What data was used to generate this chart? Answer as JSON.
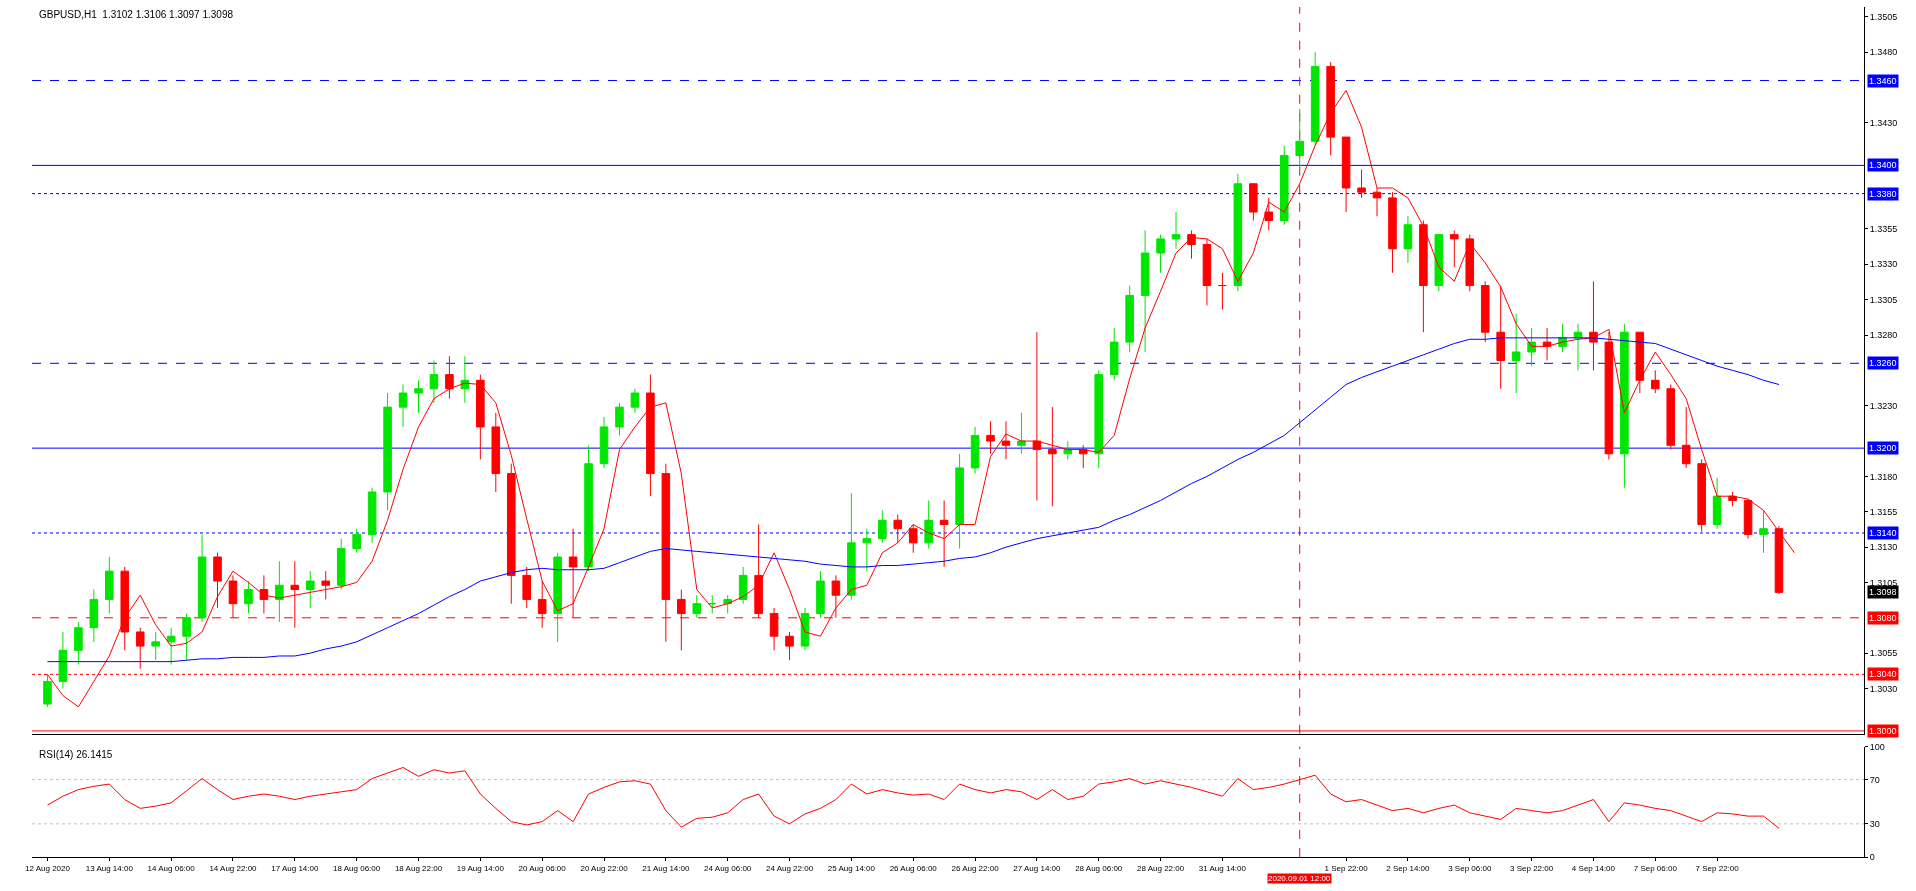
{
  "chart_data": [
    {
      "type": "candlestick",
      "title": "GBPUSD,H1  1.3102 1.3106 1.3097 1.3098",
      "categories": [
        "12 Aug 2020",
        null,
        null,
        null,
        "13 Aug 14:00",
        null,
        null,
        null,
        "14 Aug 06:00",
        null,
        null,
        null,
        "14 Aug 22:00",
        null,
        null,
        null,
        "17 Aug 14:00",
        null,
        null,
        null,
        "18 Aug 06:00",
        null,
        null,
        null,
        "18 Aug 22:00",
        null,
        null,
        null,
        "19 Aug 14:00",
        null,
        null,
        null,
        "20 Aug 06:00",
        null,
        null,
        null,
        "20 Aug 22:00",
        null,
        null,
        null,
        "21 Aug 14:00",
        null,
        null,
        null,
        "24 Aug 06:00",
        null,
        null,
        null,
        "24 Aug 22:00",
        null,
        null,
        null,
        "25 Aug 14:00",
        null,
        null,
        null,
        "26 Aug 06:00",
        null,
        null,
        null,
        "26 Aug 22:00",
        null,
        null,
        null,
        "27 Aug 14:00",
        null,
        null,
        null,
        "28 Aug 06:00",
        null,
        null,
        null,
        "28 Aug 22:00",
        null,
        null,
        null,
        "31 Aug 14:00",
        null,
        null,
        null,
        null,
        "2020.09.01 12:00",
        null,
        null,
        "1 Sep 22:00",
        null,
        null,
        null,
        "2 Sep 14:00",
        null,
        null,
        null,
        "3 Sep 06:00",
        null,
        null,
        null,
        "3 Sep 22:00",
        null,
        null,
        null,
        "4 Sep 14:00",
        null,
        null,
        null,
        "7 Sep 06:00",
        null,
        null,
        null,
        "7 Sep 22:00",
        null,
        null,
        null,
        null,
        null,
        null,
        null,
        null,
        null
      ],
      "ohlc": [
        [
          1.3019,
          1.304,
          1.3017,
          1.3035
        ],
        [
          1.3035,
          1.307,
          1.303,
          1.3057
        ],
        [
          1.3057,
          1.3077,
          1.3047,
          1.3073
        ],
        [
          1.3073,
          1.31,
          1.3063,
          1.3093
        ],
        [
          1.3093,
          1.3123,
          1.3083,
          1.3113
        ],
        [
          1.3113,
          1.3116,
          1.3057,
          1.307
        ],
        [
          1.307,
          1.3073,
          1.3044,
          1.306
        ],
        [
          1.306,
          1.307,
          1.305,
          1.3063
        ],
        [
          1.3063,
          1.3073,
          1.3047,
          1.3067
        ],
        [
          1.3067,
          1.3083,
          1.305,
          1.308
        ],
        [
          1.308,
          1.3139,
          1.3077,
          1.3123
        ],
        [
          1.3123,
          1.3126,
          1.3087,
          1.3106
        ],
        [
          1.3106,
          1.311,
          1.308,
          1.309
        ],
        [
          1.309,
          1.3106,
          1.3083,
          1.31
        ],
        [
          1.31,
          1.311,
          1.3083,
          1.3093
        ],
        [
          1.3093,
          1.312,
          1.3077,
          1.3103
        ],
        [
          1.3103,
          1.312,
          1.3073,
          1.31
        ],
        [
          1.31,
          1.3113,
          1.3087,
          1.3106
        ],
        [
          1.3106,
          1.3113,
          1.3093,
          1.3103
        ],
        [
          1.3103,
          1.3136,
          1.31,
          1.3129
        ],
        [
          1.3129,
          1.3143,
          1.3126,
          1.3139
        ],
        [
          1.3139,
          1.3172,
          1.3133,
          1.3169
        ],
        [
          1.3169,
          1.3239,
          1.3156,
          1.3229
        ],
        [
          1.3229,
          1.3245,
          1.3215,
          1.3239
        ],
        [
          1.3239,
          1.3248,
          1.3225,
          1.3242
        ],
        [
          1.3242,
          1.3262,
          1.3232,
          1.3252
        ],
        [
          1.3252,
          1.3265,
          1.3235,
          1.3242
        ],
        [
          1.3242,
          1.3265,
          1.3232,
          1.3248
        ],
        [
          1.3248,
          1.3252,
          1.3192,
          1.3215
        ],
        [
          1.3215,
          1.3225,
          1.3169,
          1.3182
        ],
        [
          1.3182,
          1.3189,
          1.309,
          1.311
        ],
        [
          1.311,
          1.3116,
          1.3087,
          1.3093
        ],
        [
          1.3093,
          1.3106,
          1.3073,
          1.3083
        ],
        [
          1.3083,
          1.3126,
          1.3063,
          1.3123
        ],
        [
          1.3123,
          1.3143,
          1.308,
          1.3116
        ],
        [
          1.3116,
          1.3202,
          1.3113,
          1.3189
        ],
        [
          1.3189,
          1.3222,
          1.3186,
          1.3215
        ],
        [
          1.3215,
          1.3232,
          1.3209,
          1.3229
        ],
        [
          1.3229,
          1.3242,
          1.3225,
          1.3239
        ],
        [
          1.3239,
          1.3252,
          1.3166,
          1.3182
        ],
        [
          1.3182,
          1.3189,
          1.3063,
          1.3093
        ],
        [
          1.3093,
          1.31,
          1.3057,
          1.3083
        ],
        [
          1.3083,
          1.3096,
          1.308,
          1.309
        ],
        [
          1.309,
          1.3096,
          1.3083,
          1.309
        ],
        [
          1.309,
          1.3096,
          1.3083,
          1.3093
        ],
        [
          1.3093,
          1.3116,
          1.309,
          1.311
        ],
        [
          1.311,
          1.3146,
          1.308,
          1.3083
        ],
        [
          1.3083,
          1.3087,
          1.3057,
          1.3067
        ],
        [
          1.3067,
          1.307,
          1.305,
          1.306
        ],
        [
          1.306,
          1.3087,
          1.3057,
          1.3083
        ],
        [
          1.3083,
          1.3113,
          1.308,
          1.3106
        ],
        [
          1.3106,
          1.311,
          1.308,
          1.3096
        ],
        [
          1.3096,
          1.3168,
          1.3093,
          1.3133
        ],
        [
          1.3133,
          1.3143,
          1.3113,
          1.3136
        ],
        [
          1.3136,
          1.3156,
          1.3133,
          1.3149
        ],
        [
          1.3149,
          1.3153,
          1.3133,
          1.3143
        ],
        [
          1.3143,
          1.3146,
          1.3126,
          1.3133
        ],
        [
          1.3133,
          1.3163,
          1.3129,
          1.3149
        ],
        [
          1.3149,
          1.3163,
          1.3116,
          1.3146
        ],
        [
          1.3146,
          1.3196,
          1.3129,
          1.3186
        ],
        [
          1.3186,
          1.3215,
          1.3182,
          1.3209
        ],
        [
          1.3209,
          1.3219,
          1.3196,
          1.3205
        ],
        [
          1.3205,
          1.3219,
          1.3192,
          1.3202
        ],
        [
          1.3202,
          1.3225,
          1.3196,
          1.3205
        ],
        [
          1.3205,
          1.3282,
          1.3163,
          1.3199
        ],
        [
          1.3199,
          1.3229,
          1.3159,
          1.3196
        ],
        [
          1.3196,
          1.3205,
          1.3192,
          1.3199
        ],
        [
          1.3199,
          1.3202,
          1.3186,
          1.3196
        ],
        [
          1.3196,
          1.3255,
          1.3186,
          1.3252
        ],
        [
          1.3252,
          1.3285,
          1.3248,
          1.3275
        ],
        [
          1.3275,
          1.3315,
          1.3268,
          1.3308
        ],
        [
          1.3308,
          1.3354,
          1.3268,
          1.3338
        ],
        [
          1.3338,
          1.3351,
          1.3324,
          1.3348
        ],
        [
          1.3348,
          1.3367,
          1.3341,
          1.3351
        ],
        [
          1.3351,
          1.3354,
          1.3334,
          1.3344
        ],
        [
          1.3344,
          1.3348,
          1.3301,
          1.3315
        ],
        [
          1.3315,
          1.3324,
          1.3298,
          1.3315
        ],
        [
          1.3315,
          1.3394,
          1.3311,
          1.3387
        ],
        [
          1.3387,
          1.3387,
          1.3361,
          1.3367
        ],
        [
          1.3367,
          1.3377,
          1.3354,
          1.3361
        ],
        [
          1.3361,
          1.3414,
          1.3358,
          1.3407
        ],
        [
          1.3407,
          1.344,
          1.3397,
          1.3417
        ],
        [
          1.3417,
          1.348,
          1.3414,
          1.347
        ],
        [
          1.347,
          1.3473,
          1.3407,
          1.342
        ],
        [
          1.342,
          1.342,
          1.3367,
          1.3384
        ],
        [
          1.3384,
          1.3397,
          1.3377,
          1.3381
        ],
        [
          1.3381,
          1.3384,
          1.3364,
          1.3377
        ],
        [
          1.3377,
          1.3381,
          1.3324,
          1.3341
        ],
        [
          1.3341,
          1.3364,
          1.3331,
          1.3358
        ],
        [
          1.3358,
          1.3361,
          1.3282,
          1.3315
        ],
        [
          1.3315,
          1.3351,
          1.3311,
          1.3351
        ],
        [
          1.3351,
          1.3354,
          1.3328,
          1.3348
        ],
        [
          1.3348,
          1.3351,
          1.3311,
          1.3315
        ],
        [
          1.3315,
          1.3318,
          1.3275,
          1.3282
        ],
        [
          1.3282,
          1.3315,
          1.3242,
          1.3262
        ],
        [
          1.3262,
          1.3295,
          1.3239,
          1.3268
        ],
        [
          1.3268,
          1.3285,
          1.3258,
          1.3275
        ],
        [
          1.3275,
          1.3285,
          1.3262,
          1.3272
        ],
        [
          1.3272,
          1.3288,
          1.3268,
          1.3278
        ],
        [
          1.3278,
          1.3288,
          1.3255,
          1.3282
        ],
        [
          1.3282,
          1.3318,
          1.3255,
          1.3275
        ],
        [
          1.3275,
          1.3282,
          1.3192,
          1.3196
        ],
        [
          1.3196,
          1.3288,
          1.3172,
          1.3282
        ],
        [
          1.3282,
          1.3282,
          1.3239,
          1.3248
        ],
        [
          1.3248,
          1.3255,
          1.3239,
          1.3242
        ],
        [
          1.3242,
          1.3245,
          1.3199,
          1.3202
        ],
        [
          1.3202,
          1.3229,
          1.3186,
          1.3189
        ],
        [
          1.3189,
          1.3192,
          1.3141,
          1.3146
        ],
        [
          1.3146,
          1.3179,
          1.3143,
          1.3166
        ],
        [
          1.3166,
          1.3169,
          1.3159,
          1.3163
        ],
        [
          1.3163,
          1.3164,
          1.3136,
          1.3139
        ],
        [
          1.3139,
          1.3156,
          1.3126,
          1.3143
        ],
        [
          1.3143,
          1.3145,
          1.3097,
          1.3098
        ],
        null,
        null,
        null,
        null,
        null
      ],
      "series": [
        {
          "type": "line",
          "color": "#ff0000",
          "values": [
            1.304,
            1.3025,
            1.3017,
            1.3035,
            1.3053,
            1.308,
            1.3096,
            1.3075,
            1.306,
            1.3062,
            1.307,
            1.3095,
            1.3113,
            1.3105,
            1.3096,
            1.3094,
            1.3096,
            1.3098,
            1.31,
            1.3102,
            1.3105,
            1.312,
            1.3149,
            1.3185,
            1.3215,
            1.3235,
            1.3242,
            1.3246,
            1.3245,
            1.3232,
            1.3195,
            1.315,
            1.3106,
            1.3085,
            1.309,
            1.3116,
            1.3143,
            1.3199,
            1.3215,
            1.3229,
            1.3232,
            1.3182,
            1.31,
            1.3087,
            1.309,
            1.3095,
            1.3103,
            1.3126,
            1.31,
            1.307,
            1.3067,
            1.3087,
            1.31,
            1.3103,
            1.3126,
            1.3133,
            1.3146,
            1.314,
            1.3136,
            1.3146,
            1.3146,
            1.3194,
            1.321,
            1.3205,
            1.3205,
            1.3202,
            1.3199,
            1.3199,
            1.3197,
            1.3209,
            1.3249,
            1.3285,
            1.3311,
            1.3338,
            1.3349,
            1.3348,
            1.3341,
            1.3318,
            1.3338,
            1.3374,
            1.3367,
            1.3387,
            1.3414,
            1.3437,
            1.3453,
            1.3427,
            1.3384,
            1.3384,
            1.3377,
            1.3357,
            1.3328,
            1.3318,
            1.3345,
            1.3331,
            1.3314,
            1.3288,
            1.3272,
            1.3272,
            1.3275,
            1.3277,
            1.3278,
            1.3284,
            1.3225,
            1.3248,
            1.3268,
            1.3252,
            1.3235,
            1.3199,
            1.3166,
            1.3166,
            1.3164,
            1.3156,
            1.3141,
            1.3126,
            null,
            null,
            null,
            null
          ]
        },
        {
          "type": "line",
          "color": "#0000ff",
          "values": [
            1.3049,
            1.3049,
            1.3049,
            1.3049,
            1.3049,
            1.3049,
            1.3049,
            1.3049,
            1.3049,
            1.305,
            1.3051,
            1.3051,
            1.3052,
            1.3052,
            1.3052,
            1.3053,
            1.3053,
            1.3055,
            1.3058,
            1.306,
            1.3063,
            1.3068,
            1.3073,
            1.3078,
            1.3083,
            1.3089,
            1.3095,
            1.31,
            1.3106,
            1.3109,
            1.3112,
            1.3114,
            1.3115,
            1.3114,
            1.3114,
            1.3114,
            1.3115,
            1.3119,
            1.3123,
            1.3127,
            1.3129,
            1.3128,
            1.3127,
            1.3126,
            1.3125,
            1.3124,
            1.3123,
            1.3122,
            1.3121,
            1.312,
            1.3118,
            1.3117,
            1.3116,
            1.3116,
            1.3117,
            1.3117,
            1.3118,
            1.3119,
            1.312,
            1.3122,
            1.3123,
            1.3126,
            1.313,
            1.3133,
            1.3136,
            1.3138,
            1.314,
            1.3142,
            1.3144,
            1.3149,
            1.3153,
            1.3158,
            1.3163,
            1.3169,
            1.3175,
            1.318,
            1.3186,
            1.3192,
            1.3197,
            1.3203,
            1.3209,
            1.3218,
            1.3227,
            1.3236,
            1.3245,
            1.325,
            1.3254,
            1.3258,
            1.3262,
            1.3266,
            1.327,
            1.3274,
            1.3277,
            1.3277,
            1.3278,
            1.3278,
            1.3278,
            1.3278,
            1.3278,
            1.3278,
            1.3278,
            1.3277,
            1.3276,
            1.3275,
            1.3274,
            1.327,
            1.3266,
            1.3262,
            1.3258,
            1.3255,
            1.3252,
            1.3248,
            1.3245,
            null,
            null,
            null,
            null,
            null
          ]
        }
      ],
      "ylim": [
        1.2998,
        1.3512
      ],
      "yticks": [
        1.3505,
        {
          "value": 1.348,
          "label": "1.3480"
        },
        {
          "value": 1.343,
          "label": "1.3430"
        },
        1.3355,
        {
          "value": 1.333,
          "label": "1.3330"
        },
        1.3305,
        {
          "value": 1.328,
          "label": "1.3280"
        },
        {
          "value": 1.323,
          "label": "1.3230"
        },
        {
          "value": 1.318,
          "label": "1.3180"
        },
        1.3155,
        {
          "value": 1.313,
          "label": "1.3130"
        },
        1.3105,
        1.3055,
        {
          "value": 1.303,
          "label": "1.3030"
        }
      ],
      "tick_labels": "y",
      "ref_lines": [
        {
          "axis": "y",
          "value": 1.346,
          "label": "1.3460",
          "color": "#0000ff",
          "line_style": "dashed"
        },
        {
          "axis": "y",
          "value": 1.34,
          "label": "1.3400",
          "color": "#0000ff",
          "line_style": "solid"
        },
        {
          "axis": "y",
          "value": 1.338,
          "label": "1.3380",
          "color": "#0000ff",
          "line_style": "dotted"
        },
        {
          "axis": "y",
          "value": 1.326,
          "label": "1.3260",
          "color": "#0000ff",
          "line_style": "dashed"
        },
        {
          "axis": "y",
          "value": 1.32,
          "label": "1.3200",
          "color": "#0000ff",
          "line_style": "solid"
        },
        {
          "axis": "y",
          "value": 1.314,
          "label": "1.3140",
          "color": "#0000ff",
          "line_style": "dotted"
        },
        {
          "axis": "y",
          "value": 1.308,
          "label": "1.3080",
          "color": "#ff0000",
          "line_style": "dashed"
        },
        {
          "axis": "y",
          "value": 1.304,
          "label": "1.3040",
          "color": "#ff0000",
          "line_style": "dotted"
        },
        {
          "axis": "y",
          "value": 1.3,
          "label": "1.3000",
          "color": "#ff0000",
          "line_style": "solid"
        },
        {
          "axis": "x",
          "value": "2020.09.01 12:00",
          "color": "#ff0000",
          "line_style": "dashed"
        }
      ],
      "annotations": [
        "1.3098"
      ]
    },
    {
      "type": "line",
      "title": "RSI(14) 26.1415",
      "categories": [
        "12 Aug 2020",
        null,
        null,
        null,
        "13 Aug 14:00",
        null,
        null,
        null,
        "14 Aug 06:00",
        null,
        null,
        null,
        "14 Aug 22:00",
        null,
        null,
        null,
        "17 Aug 14:00",
        null,
        null,
        null,
        "18 Aug 06:00",
        null,
        null,
        null,
        "18 Aug 22:00",
        null,
        null,
        null,
        "19 Aug 14:00",
        null,
        null,
        null,
        "20 Aug 06:00",
        null,
        null,
        null,
        "20 Aug 22:00",
        null,
        null,
        null,
        "21 Aug 14:00",
        null,
        null,
        null,
        "24 Aug 06:00",
        null,
        null,
        null,
        "24 Aug 22:00",
        null,
        null,
        null,
        "25 Aug 14:00",
        null,
        null,
        null,
        "26 Aug 06:00",
        null,
        null,
        null,
        "26 Aug 22:00",
        null,
        null,
        null,
        "27 Aug 14:00",
        null,
        null,
        null,
        "28 Aug 06:00",
        null,
        null,
        null,
        "28 Aug 22:00",
        null,
        null,
        null,
        "31 Aug 14:00",
        null,
        null,
        null,
        null,
        "2020.09.01 12:00",
        null,
        null,
        "1 Sep 22:00",
        null,
        null,
        null,
        "2 Sep 14:00",
        null,
        null,
        null,
        "3 Sep 06:00",
        null,
        null,
        null,
        "3 Sep 22:00",
        null,
        null,
        null,
        "4 Sep 14:00",
        null,
        null,
        null,
        "7 Sep 06:00",
        null,
        null,
        null,
        "7 Sep 22:00",
        null,
        null,
        null,
        null,
        null,
        null,
        null,
        null,
        null
      ],
      "series": [
        {
          "color": "#ff0000",
          "values": [
            47,
            55,
            61,
            64,
            66,
            52,
            44,
            46,
            49,
            60,
            71,
            61,
            52,
            55,
            57,
            55,
            52,
            55,
            57,
            59,
            61,
            71,
            76,
            81,
            73,
            79,
            76,
            78,
            57,
            44,
            32,
            29,
            32,
            42,
            32,
            57,
            63,
            68,
            69,
            66,
            42,
            27,
            35,
            36,
            40,
            52,
            57,
            37,
            30,
            39,
            44,
            52,
            66,
            57,
            61,
            58,
            56,
            57,
            52,
            66,
            61,
            58,
            61,
            59,
            52,
            61,
            52,
            55,
            66,
            68,
            71,
            66,
            69,
            66,
            63,
            59,
            55,
            71,
            61,
            63,
            66,
            70,
            74,
            57,
            50,
            52,
            47,
            42,
            44,
            40,
            44,
            47,
            40,
            37,
            34,
            44,
            42,
            40,
            42,
            47,
            52,
            32,
            49,
            47,
            44,
            42,
            37,
            32,
            40,
            39,
            37,
            37,
            26,
            null,
            null,
            null,
            null,
            null
          ]
        }
      ],
      "ylim": [
        0,
        100
      ],
      "yticks": [
        0,
        30,
        70,
        100
      ],
      "ref_lines": [
        {
          "axis": "y",
          "value": 30,
          "color": "#c0c0c0",
          "line_style": "dotted"
        },
        {
          "axis": "y",
          "value": 70,
          "color": "#c0c0c0",
          "line_style": "dotted"
        },
        {
          "axis": "x",
          "value": "2020.09.01 12:00",
          "color": "#ff0000",
          "line_style": "dashed"
        }
      ]
    }
  ]
}
